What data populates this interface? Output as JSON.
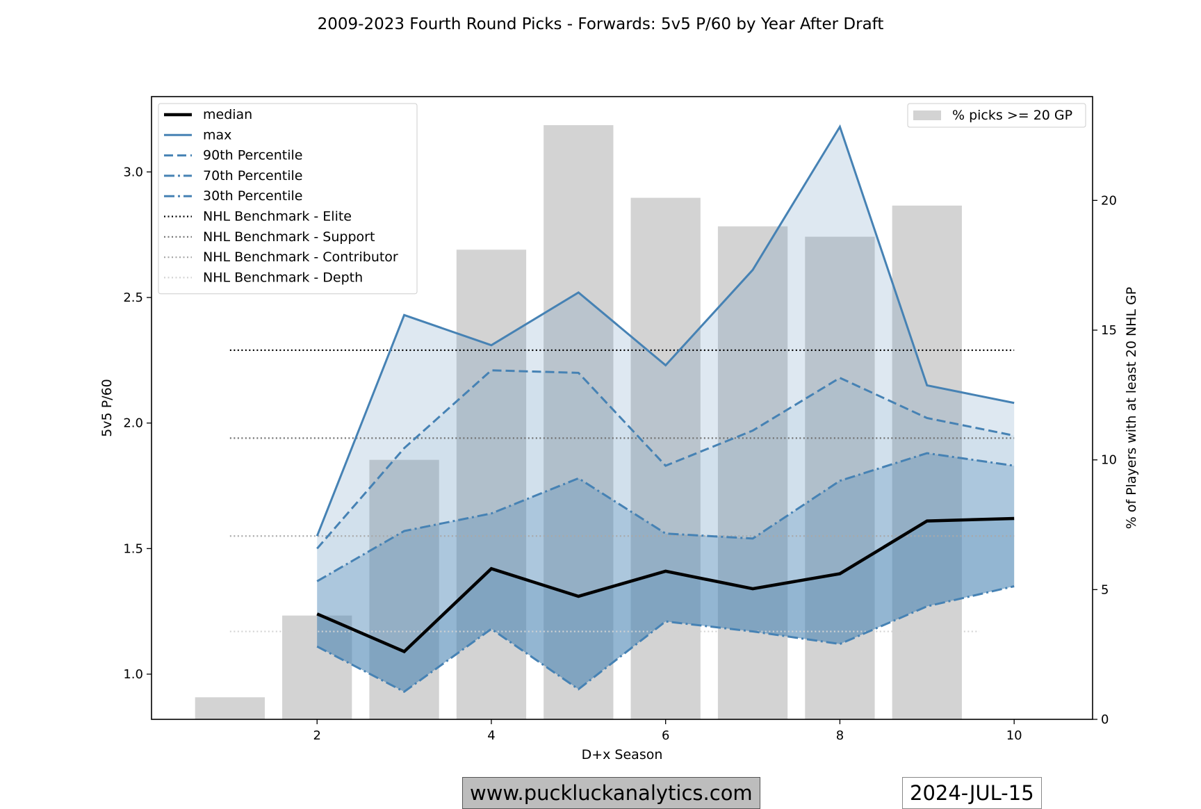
{
  "chart_data": {
    "type": "line",
    "title": "2009-2023 Fourth Round Picks - Forwards: 5v5 P/60 by Year After Draft",
    "xlabel": "D+x Season",
    "ylabel": "5v5 P/60",
    "y2label": "% of Players with at least 20 NHL GP",
    "xlim": [
      0.1,
      10.9
    ],
    "ylim": [
      0.82,
      3.3
    ],
    "y2lim": [
      0,
      24
    ],
    "xticks": [
      2,
      4,
      6,
      8,
      10
    ],
    "yticks": [
      1.0,
      1.5,
      2.0,
      2.5,
      3.0
    ],
    "y2ticks": [
      0,
      5,
      10,
      15,
      20
    ],
    "x": [
      2,
      3,
      4,
      5,
      6,
      7,
      8,
      9,
      10
    ],
    "series": [
      {
        "name": "median",
        "values": [
          1.24,
          1.09,
          1.42,
          1.31,
          1.41,
          1.34,
          1.4,
          1.61,
          1.62
        ],
        "style": "solid-thick",
        "color": "#000000"
      },
      {
        "name": "max",
        "values": [
          1.55,
          2.43,
          2.31,
          2.52,
          2.23,
          2.61,
          3.18,
          2.15,
          2.08
        ],
        "style": "solid",
        "color": "#4682b4"
      },
      {
        "name": "90th Percentile",
        "values": [
          1.5,
          1.9,
          2.21,
          2.2,
          1.83,
          1.97,
          2.18,
          2.02,
          1.95
        ],
        "style": "dashed",
        "color": "#4682b4"
      },
      {
        "name": "70th Percentile",
        "values": [
          1.37,
          1.57,
          1.64,
          1.78,
          1.56,
          1.54,
          1.77,
          1.88,
          1.83
        ],
        "style": "dashdot",
        "color": "#4682b4"
      },
      {
        "name": "30th Percentile",
        "values": [
          1.11,
          0.93,
          1.18,
          0.94,
          1.21,
          1.17,
          1.12,
          1.27,
          1.35
        ],
        "style": "dashdot",
        "color": "#4682b4"
      }
    ],
    "benchmarks": [
      {
        "name": "NHL Benchmark - Elite",
        "value": 2.29,
        "x_range": [
          1,
          10
        ],
        "color": "#000000"
      },
      {
        "name": "NHL Benchmark - Support",
        "value": 1.94,
        "x_range": [
          1,
          10
        ],
        "color": "#707070"
      },
      {
        "name": "NHL Benchmark - Contributor",
        "value": 1.55,
        "x_range": [
          1,
          10
        ],
        "color": "#a9a9a9"
      },
      {
        "name": "NHL Benchmark - Depth",
        "value": 1.17,
        "x_range": [
          1,
          9.6
        ],
        "color": "#d3d3d3"
      }
    ],
    "bars": {
      "name": "% picks >= 20 GP",
      "x": [
        1,
        2,
        3,
        4,
        5,
        6,
        7,
        8,
        9,
        10
      ],
      "values": [
        0.85,
        4.0,
        10.0,
        18.1,
        22.9,
        20.1,
        19.0,
        18.6,
        19.8,
        null
      ],
      "color": "#d3d3d3",
      "axis": "right"
    },
    "legend_left_location": "upper left",
    "legend_right_location": "upper right",
    "grid": false
  },
  "footer": {
    "site": "www.puckluckanalytics.com",
    "date": "2024-JUL-15"
  }
}
